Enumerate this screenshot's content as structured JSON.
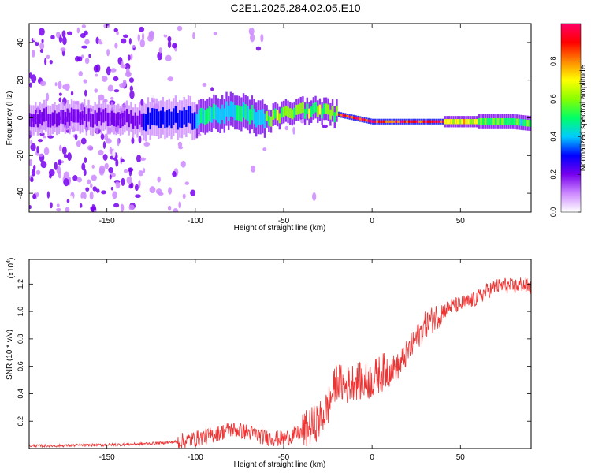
{
  "title": "C2E1.2025.284.02.05.E10",
  "chart_data": [
    {
      "type": "heatmap",
      "xlabel": "Height of straight line (km)",
      "ylabel": "Frequency (Hz)",
      "xlim": [
        -194,
        90
      ],
      "ylim": [
        -50,
        50
      ],
      "xticks": [
        -150,
        -100,
        -50,
        0,
        50
      ],
      "yticks": [
        -40,
        -20,
        0,
        20,
        40
      ],
      "colorbar": {
        "label": "Normalized spectral amplitude",
        "range": [
          0.0,
          1.0
        ],
        "ticks": [
          "0.0",
          "0.2",
          "0.4",
          "0.6",
          "0.8"
        ],
        "stops": [
          "#ffffff",
          "#cc88ff",
          "#7700ee",
          "#0000ff",
          "#00ccff",
          "#00ff66",
          "#88ff00",
          "#ffff00",
          "#ff8800",
          "#ff0000",
          "#ff0066"
        ]
      },
      "ridge": {
        "x": [
          -190,
          -170,
          -150,
          -130,
          -110,
          -100,
          -90,
          -80,
          -70,
          -60,
          -50,
          -40,
          -30,
          -20,
          0,
          20,
          40,
          60,
          80,
          90
        ],
        "freq": [
          0,
          1,
          0,
          -1,
          0,
          0,
          2,
          3,
          2,
          -1,
          2,
          4,
          4,
          2,
          -2,
          -2,
          -2,
          -2,
          -2,
          -3
        ]
      }
    },
    {
      "type": "line",
      "xlabel": "Height of straight line (km)",
      "ylabel": "SNR (10 * v/v)",
      "yscale_label": "(x10",
      "yscale_exp": "4",
      "xlim": [
        -194,
        90
      ],
      "ylim": [
        0,
        1.38
      ],
      "xticks": [
        -150,
        -100,
        -50,
        0,
        50
      ],
      "yticks": [
        "0.2",
        "0.4",
        "0.6",
        "0.8",
        "1.0",
        "1.2"
      ],
      "color": "#ee3333",
      "series": [
        {
          "name": "SNR",
          "x": [
            -194,
            -180,
            -160,
            -140,
            -120,
            -110,
            -100,
            -90,
            -80,
            -70,
            -60,
            -50,
            -40,
            -30,
            -25,
            -20,
            -15,
            -10,
            -5,
            0,
            5,
            10,
            15,
            20,
            25,
            30,
            35,
            40,
            45,
            50,
            55,
            60,
            65,
            70,
            75,
            80,
            85,
            90
          ],
          "values": [
            0.02,
            0.02,
            0.025,
            0.03,
            0.04,
            0.05,
            0.07,
            0.1,
            0.14,
            0.12,
            0.08,
            0.07,
            0.12,
            0.2,
            0.3,
            0.5,
            0.45,
            0.5,
            0.48,
            0.5,
            0.55,
            0.58,
            0.6,
            0.7,
            0.8,
            0.9,
            0.95,
            1.0,
            1.04,
            1.05,
            1.07,
            1.1,
            1.15,
            1.18,
            1.19,
            1.18,
            1.2,
            1.17
          ]
        }
      ]
    }
  ]
}
